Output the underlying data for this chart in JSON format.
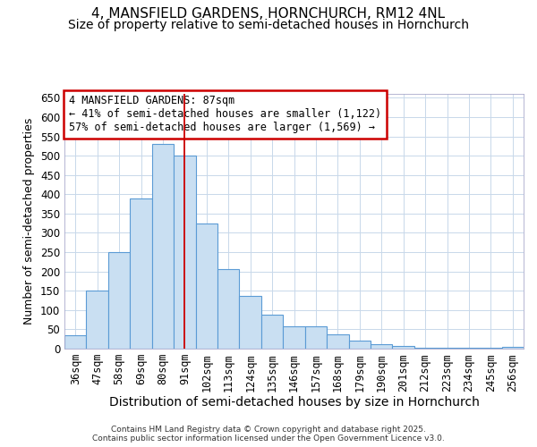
{
  "title": "4, MANSFIELD GARDENS, HORNCHURCH, RM12 4NL",
  "subtitle": "Size of property relative to semi-detached houses in Hornchurch",
  "xlabel": "Distribution of semi-detached houses by size in Hornchurch",
  "ylabel": "Number of semi-detached properties",
  "categories": [
    "36sqm",
    "47sqm",
    "58sqm",
    "69sqm",
    "80sqm",
    "91sqm",
    "102sqm",
    "113sqm",
    "124sqm",
    "135sqm",
    "146sqm",
    "157sqm",
    "168sqm",
    "179sqm",
    "190sqm",
    "201sqm",
    "212sqm",
    "223sqm",
    "234sqm",
    "245sqm",
    "256sqm"
  ],
  "values": [
    35,
    150,
    250,
    390,
    530,
    500,
    325,
    207,
    137,
    88,
    58,
    58,
    38,
    20,
    12,
    8,
    3,
    3,
    2,
    2,
    5
  ],
  "bar_color": "#c9dff2",
  "bar_edge_color": "#5b9bd5",
  "vline_x": 5,
  "vline_color": "#cc0000",
  "annotation_text": "4 MANSFIELD GARDENS: 87sqm\n← 41% of semi-detached houses are smaller (1,122)\n57% of semi-detached houses are larger (1,569) →",
  "box_color": "#cc0000",
  "ylim": [
    0,
    660
  ],
  "yticks": [
    0,
    50,
    100,
    150,
    200,
    250,
    300,
    350,
    400,
    450,
    500,
    550,
    600,
    650
  ],
  "background_color": "#ffffff",
  "grid_color": "#c8d8ea",
  "footer": "Contains HM Land Registry data © Crown copyright and database right 2025.\nContains public sector information licensed under the Open Government Licence v3.0.",
  "title_fontsize": 11,
  "subtitle_fontsize": 10,
  "xlabel_fontsize": 10,
  "ylabel_fontsize": 9,
  "tick_fontsize": 8.5,
  "annotation_fontsize": 8.5
}
